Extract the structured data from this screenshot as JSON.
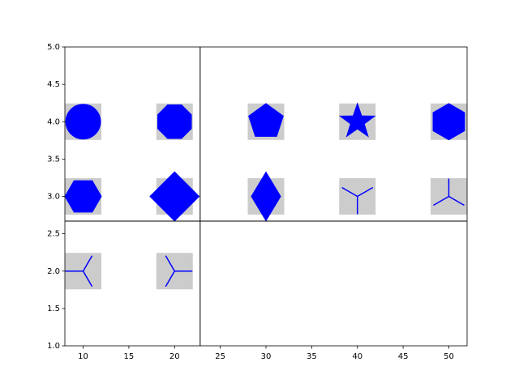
{
  "chart_data": {
    "type": "scatter",
    "series": [
      {
        "color": "#0000ff",
        "background": "#cccccc",
        "x": [
          10,
          20,
          30,
          40,
          50,
          10,
          20,
          30,
          40,
          50,
          10,
          20
        ],
        "y": [
          4,
          4,
          4,
          4,
          4,
          3,
          3,
          3,
          3,
          3,
          2,
          2
        ],
        "markers": [
          "o",
          "8",
          "p",
          "*",
          "h",
          "H",
          "D",
          "d",
          "1",
          "2",
          "3",
          "4"
        ]
      }
    ],
    "xlim": [
      8,
      52
    ],
    "xticks": [
      10,
      15,
      20,
      25,
      30,
      35,
      40,
      45,
      50
    ],
    "ylim": [
      1,
      5
    ],
    "yticks": [
      {
        "value": 1,
        "label": "1.0"
      },
      1.5,
      {
        "value": 2,
        "label": "2.0"
      },
      2.5,
      {
        "value": 3,
        "label": "3.0"
      },
      3.5,
      {
        "value": 4,
        "label": "4.0"
      },
      4.5,
      {
        "value": 5,
        "label": "5.0"
      }
    ],
    "reference_lines": {
      "x": 22.8,
      "y": 2.67
    }
  }
}
